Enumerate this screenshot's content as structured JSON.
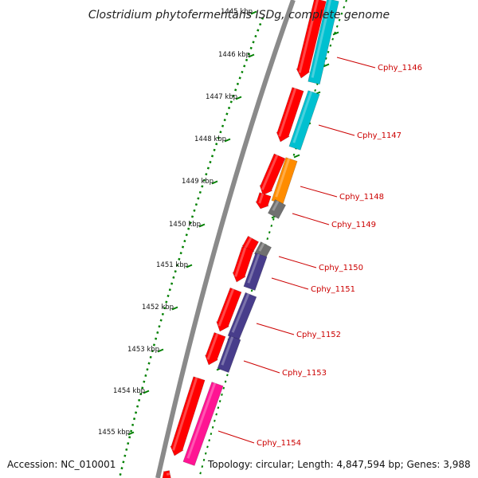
{
  "title": "Clostridium phytofermentans ISDg, complete genome",
  "scale_labels": [
    {
      "text": "1445 kbp"
    },
    {
      "text": "1446 kbp"
    },
    {
      "text": "1447 kbp"
    },
    {
      "text": "1448 kbp"
    },
    {
      "text": "1449 kbp"
    },
    {
      "text": "1450 kbp"
    },
    {
      "text": "1451 kbp"
    },
    {
      "text": "1452 kbp"
    },
    {
      "text": "1453 kbp"
    },
    {
      "text": "1454 kbp"
    },
    {
      "text": "1455 kbp"
    }
  ],
  "genes": [
    {
      "name": "Cphy_1146",
      "color": "#00c0d0"
    },
    {
      "name": "Cphy_1147",
      "color": "#00c0d0"
    },
    {
      "name": "Cphy_1148",
      "color": "#ff8c00"
    },
    {
      "name": "Cphy_1149",
      "color": "#707070"
    },
    {
      "name": "Cphy_1150",
      "color": "#707070"
    },
    {
      "name": "Cphy_1151",
      "color": "#483d8b"
    },
    {
      "name": "Cphy_1152",
      "color": "#483d8b"
    },
    {
      "name": "Cphy_1153",
      "color": "#483d8b"
    },
    {
      "name": "Cphy_1154",
      "color": "#ff1493"
    }
  ],
  "accession": "Accession: NC_010001",
  "summary": "Topology: circular; Length: 4,847,594 bp; Genes: 3,988",
  "colors": {
    "backbone": "#808080",
    "forward_cds": "#ff0000",
    "scale_ticks": "#008000",
    "labels": "#cc0000"
  }
}
